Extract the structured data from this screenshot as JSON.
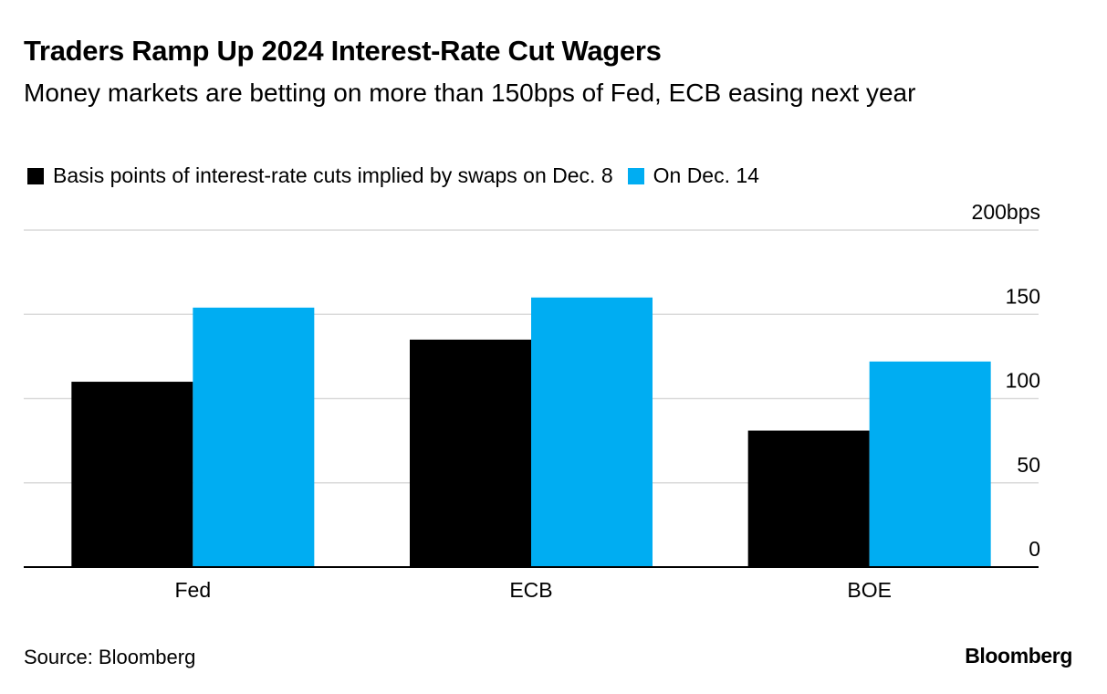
{
  "title": "Traders Ramp Up 2024 Interest-Rate Cut Wagers",
  "subtitle": "Money markets are betting on more than 150bps of Fed, ECB easing next year",
  "source": "Source: Bloomberg",
  "brand": "Bloomberg",
  "colors": {
    "series1": "#000000",
    "series2": "#00adf2",
    "grid": "#d9d9d9",
    "axis": "#000000"
  },
  "chart_data": {
    "type": "bar",
    "title": "Traders Ramp Up 2024 Interest-Rate Cut Wagers",
    "categories": [
      "Fed",
      "ECB",
      "BOE"
    ],
    "series": [
      {
        "name": "Basis points of interest-rate cuts implied by swaps on Dec. 8",
        "values": [
          110,
          135,
          81
        ]
      },
      {
        "name": "On Dec. 14",
        "values": [
          154,
          160,
          122
        ]
      }
    ],
    "ylim": [
      0,
      200
    ],
    "yticks": [
      0,
      50,
      100,
      150,
      200
    ],
    "ytick_labels": [
      "0",
      "50",
      "100",
      "150",
      "200bps"
    ],
    "xlabel": "",
    "ylabel": "",
    "grid": true,
    "legend_position": "top-left",
    "y_axis_side": "right"
  }
}
